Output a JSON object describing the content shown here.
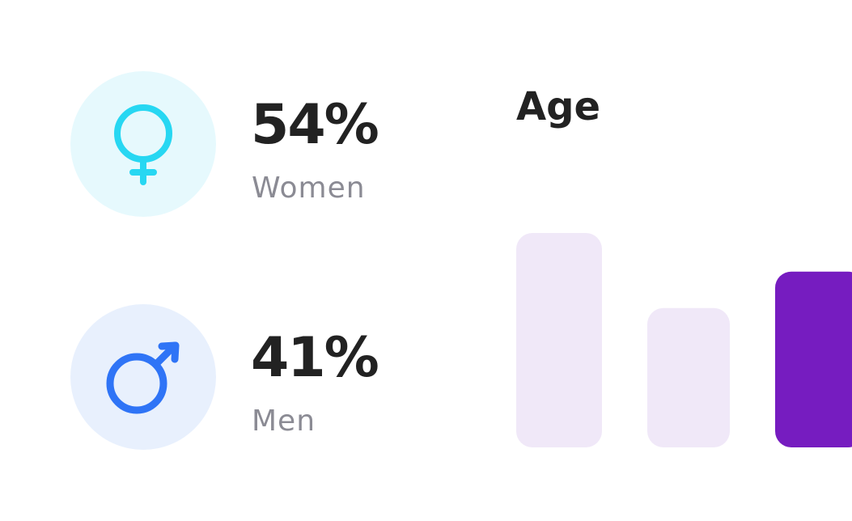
{
  "stats": [
    {
      "value": "54%",
      "label": "Women",
      "circle_color": "#e6f9fd",
      "icon_color": "#27d7f2"
    },
    {
      "value": "41%",
      "label": "Men",
      "circle_color": "#e8f0fd",
      "icon_color": "#2f74f6"
    }
  ],
  "chart_data": {
    "type": "bar",
    "title": "Age",
    "values": [
      100,
      65,
      82
    ],
    "colors": [
      "#f0e8f8",
      "#f0e8f8",
      "#761cc0"
    ]
  }
}
